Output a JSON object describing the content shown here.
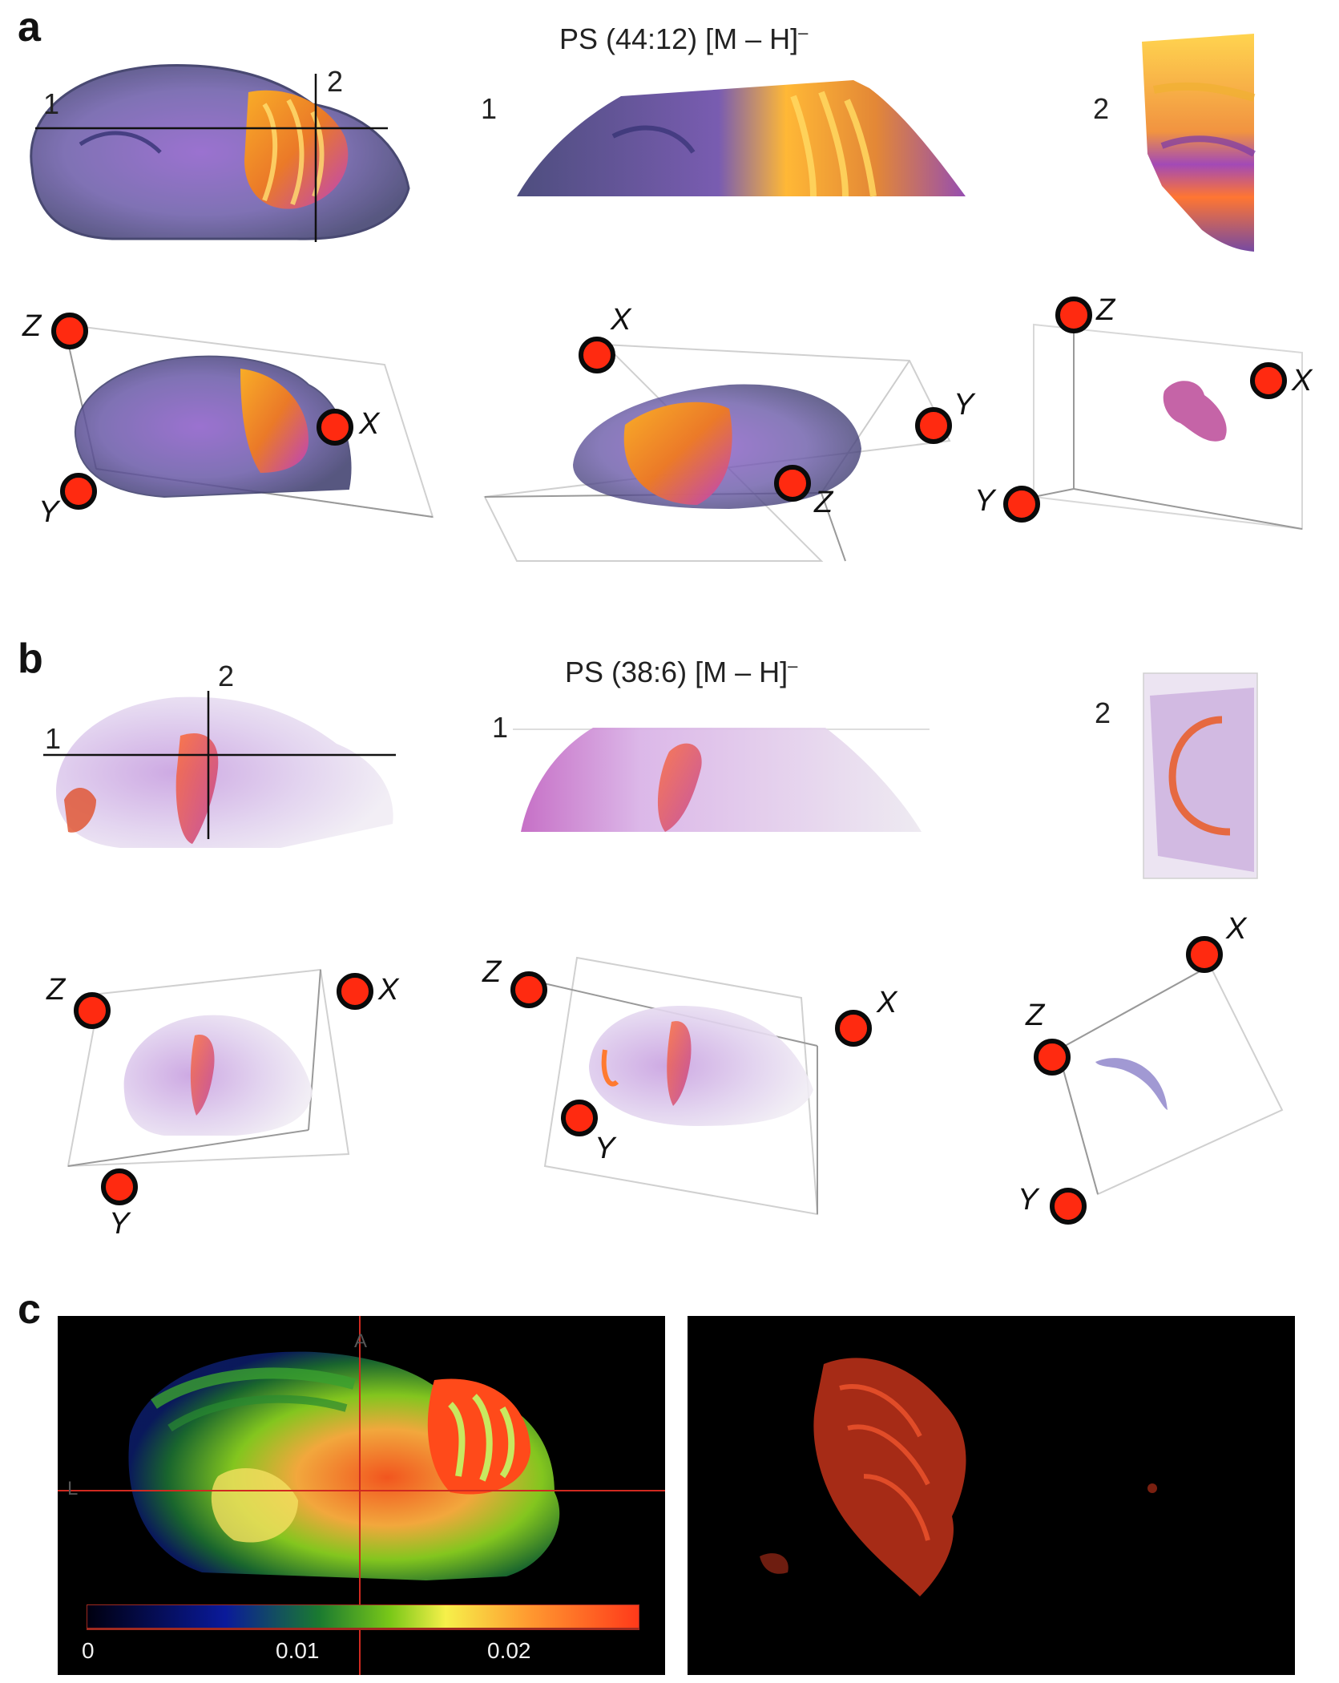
{
  "panels": {
    "a": {
      "letter": "a",
      "title_main": "PS (44:12) [M – H]",
      "title_sup": "–",
      "line1": "1",
      "line2": "2",
      "slice1": "1",
      "slice2": "2",
      "views": [
        {
          "z": "Z",
          "x": "X",
          "y": "Y"
        },
        {
          "z": "Z",
          "x": "X",
          "y": "Y"
        },
        {
          "z": "Z",
          "x": "X",
          "y": "Y"
        }
      ]
    },
    "b": {
      "letter": "b",
      "title_main": "PS (38:6) [M – H]",
      "title_sup": "–",
      "line1": "1",
      "line2": "2",
      "slice1": "1",
      "slice2": "2",
      "views": [
        {
          "z": "Z",
          "x": "X",
          "y": "Y"
        },
        {
          "z": "Z",
          "x": "X",
          "y": "Y"
        },
        {
          "z": "Z",
          "x": "X",
          "y": "Y"
        }
      ]
    },
    "c": {
      "letter": "c",
      "crosshair_top": "A",
      "crosshair_left": "L",
      "colorbar": {
        "ticks": [
          "0",
          "0.01",
          "0.02"
        ],
        "colors": [
          "#000010",
          "#0a1a9a",
          "#1a7a30",
          "#7ac818",
          "#f6f04a",
          "#ff9a30",
          "#ff3a1a"
        ]
      }
    }
  },
  "colors": {
    "dot_fill": "#ff2a10",
    "dot_ring": "#0a0a0a"
  }
}
